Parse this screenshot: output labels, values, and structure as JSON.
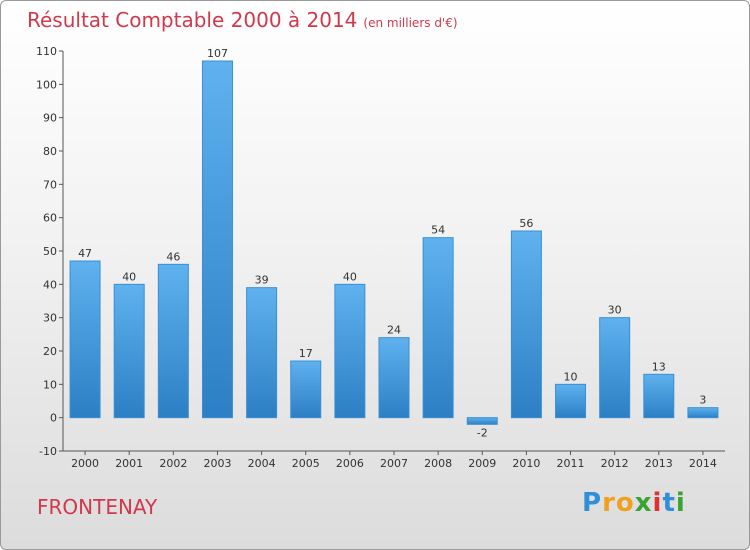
{
  "chart_data": {
    "type": "bar",
    "title": "Résultat Comptable 2000 à 2014",
    "subtitle": "(en milliers d'€)",
    "location": "FRONTENAY",
    "categories": [
      "2000",
      "2001",
      "2002",
      "2003",
      "2004",
      "2005",
      "2006",
      "2007",
      "2008",
      "2009",
      "2010",
      "2011",
      "2012",
      "2013",
      "2014"
    ],
    "values": [
      47,
      40,
      46,
      107,
      39,
      17,
      40,
      24,
      54,
      -2,
      56,
      10,
      30,
      13,
      3
    ],
    "ylim": [
      -10,
      110
    ],
    "yticks": [
      -10,
      0,
      10,
      20,
      30,
      40,
      50,
      60,
      70,
      80,
      90,
      100,
      110
    ],
    "grid": false,
    "bar_color": "#4a9fe0"
  },
  "brand": {
    "letters": [
      "P",
      "r",
      "o",
      "x",
      "i",
      "t",
      "i"
    ],
    "colors": [
      "#2f8fd8",
      "#f0a020",
      "#f0a020",
      "#3aa335",
      "#e03030",
      "#2f8fd8",
      "#3aa335"
    ]
  }
}
